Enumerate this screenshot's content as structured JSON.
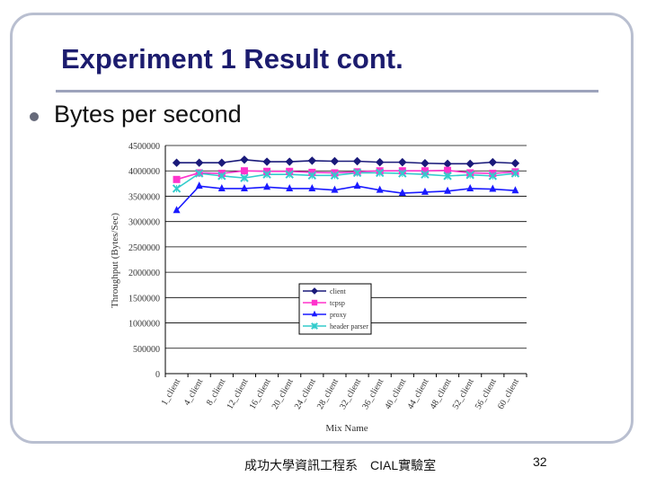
{
  "slide": {
    "title": "Experiment 1 Result cont.",
    "bullet": "Bytes per second",
    "footer": "成功大學資訊工程系　CIAL實驗室",
    "page_number": "32"
  },
  "chart_data": {
    "type": "line",
    "title": "",
    "xlabel": "Mix Name",
    "ylabel": "Throughput (Bytes/Sec)",
    "ylim": [
      0,
      4500000
    ],
    "yticks": [
      0,
      500000,
      1000000,
      1500000,
      2000000,
      2500000,
      3000000,
      3500000,
      4000000,
      4500000
    ],
    "ytick_labels": [
      "0",
      "500000",
      "1000000",
      "1500000",
      "2000000",
      "2500000",
      "3000000",
      "3500000",
      "4000000",
      "4500000"
    ],
    "grid": true,
    "legend_position": "center",
    "categories": [
      "1_client",
      "4_client",
      "8_client",
      "12_client",
      "16_client",
      "20_client",
      "24_client",
      "28_client",
      "32_client",
      "36_client",
      "40_client",
      "44_client",
      "48_client",
      "52_client",
      "56_client",
      "60_client"
    ],
    "series": [
      {
        "name": "client",
        "color": "#1a1a7a",
        "marker": "diamond",
        "values": [
          4160000,
          4160000,
          4160000,
          4220000,
          4180000,
          4180000,
          4200000,
          4190000,
          4190000,
          4170000,
          4170000,
          4150000,
          4140000,
          4140000,
          4170000,
          4150000
        ]
      },
      {
        "name": "tcpsp",
        "color": "#ff33cc",
        "marker": "square",
        "values": [
          3830000,
          3960000,
          3950000,
          4000000,
          3990000,
          3990000,
          3970000,
          3960000,
          3980000,
          4000000,
          4000000,
          4000000,
          4010000,
          3960000,
          3950000,
          3980000
        ]
      },
      {
        "name": "proxy",
        "color": "#1a1aff",
        "marker": "triangle",
        "values": [
          3220000,
          3700000,
          3650000,
          3650000,
          3680000,
          3650000,
          3650000,
          3620000,
          3700000,
          3620000,
          3560000,
          3580000,
          3600000,
          3650000,
          3640000,
          3610000
        ]
      },
      {
        "name": "header parser",
        "color": "#33cccc",
        "marker": "x",
        "values": [
          3650000,
          3950000,
          3900000,
          3860000,
          3930000,
          3930000,
          3910000,
          3910000,
          3960000,
          3960000,
          3950000,
          3930000,
          3900000,
          3920000,
          3900000,
          3950000
        ]
      }
    ]
  }
}
